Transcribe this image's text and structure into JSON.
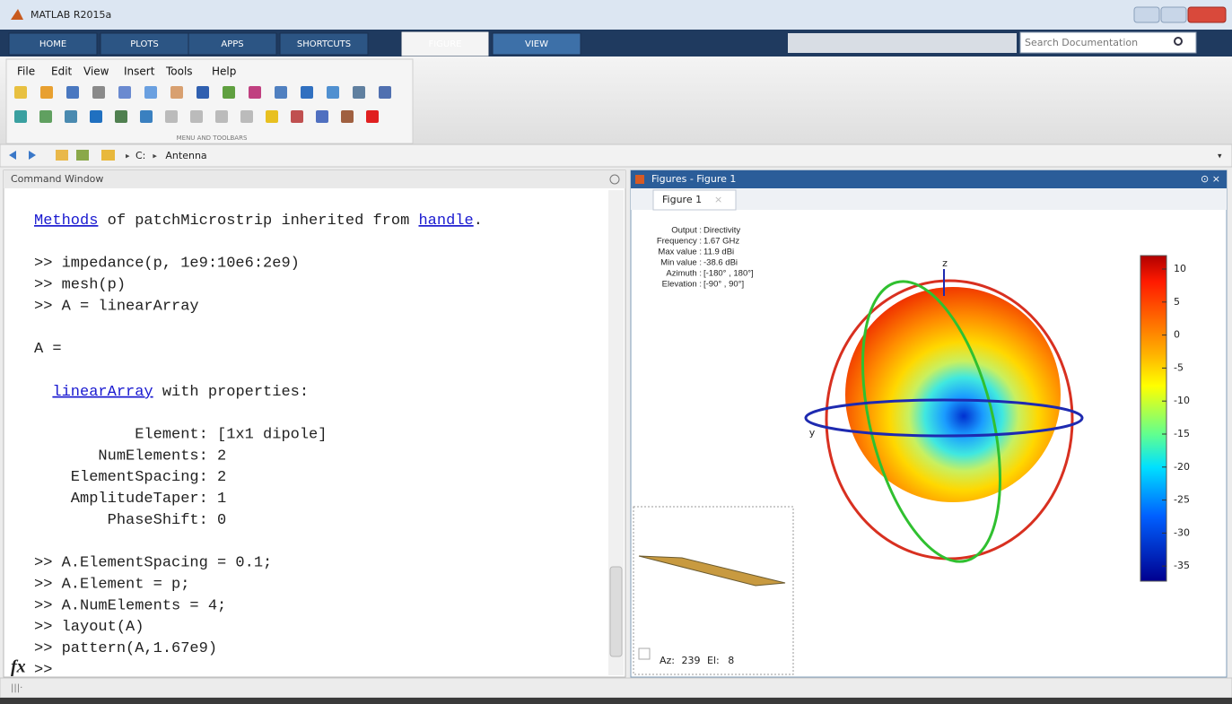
{
  "window": {
    "title": "MATLAB R2015a"
  },
  "tabs": [
    "HOME",
    "PLOTS",
    "APPS",
    "SHORTCUTS",
    "FIGURE",
    "VIEW"
  ],
  "active_tab": 4,
  "search": {
    "placeholder": "Search Documentation"
  },
  "menu": [
    "File",
    "Edit",
    "View",
    "Insert",
    "Tools",
    "Help"
  ],
  "toolstrip_section": "MENU AND TOOLBARS",
  "path": [
    "C:",
    "Antenna"
  ],
  "command_window": {
    "title": "Command Window",
    "prompt_icon": "fx",
    "blocks": [
      [
        [
          {
            "text": "Methods",
            "link": true
          },
          " of patchMicrostrip inherited from ",
          {
            "text": "handle",
            "link": true
          },
          "."
        ]
      ],
      [
        [
          ">> impedance(p, 1e9:10e6:2e9)"
        ],
        [
          ">> mesh(p)"
        ],
        [
          ">> A = linearArray"
        ]
      ],
      [
        [
          "A ="
        ]
      ],
      [
        [
          "  ",
          {
            "text": "linearArray",
            "link": true
          },
          " with properties:"
        ]
      ],
      [
        [
          "           Element: [1x1 dipole]"
        ],
        [
          "       NumElements: 2"
        ],
        [
          "    ElementSpacing: 2"
        ],
        [
          "    AmplitudeTaper: 1"
        ],
        [
          "        PhaseShift: 0"
        ]
      ],
      [
        [
          ">> A.ElementSpacing = 0.1;"
        ],
        [
          ">> A.Element = p;"
        ],
        [
          ">> A.NumElements = 4;"
        ],
        [
          ">> layout(A)"
        ],
        [
          ">> pattern(A,1.67e9)"
        ],
        [
          ">>"
        ]
      ]
    ]
  },
  "figure_panel": {
    "title": "Figures - Figure 1",
    "tab": "Figure 1",
    "info": [
      {
        "label": "Output :",
        "value": "Directivity"
      },
      {
        "label": "Frequency :",
        "value": "1.67 GHz"
      },
      {
        "label": "Max value :",
        "value": "11.9 dBi"
      },
      {
        "label": "Min value :",
        "value": "-38.6 dBi"
      },
      {
        "label": "Azimuth :",
        "value": "[-180° , 180°]"
      },
      {
        "label": "Elevation :",
        "value": "[-90° , 90°]"
      }
    ],
    "axis_labels": {
      "z": "z",
      "y": "y"
    },
    "colorbar_ticks": [
      10,
      5,
      0,
      -5,
      -10,
      -15,
      -20,
      -25,
      -30,
      -35
    ],
    "view": {
      "az_label": "Az:",
      "az": 239,
      "el_label": "El:",
      "el": 8
    }
  }
}
